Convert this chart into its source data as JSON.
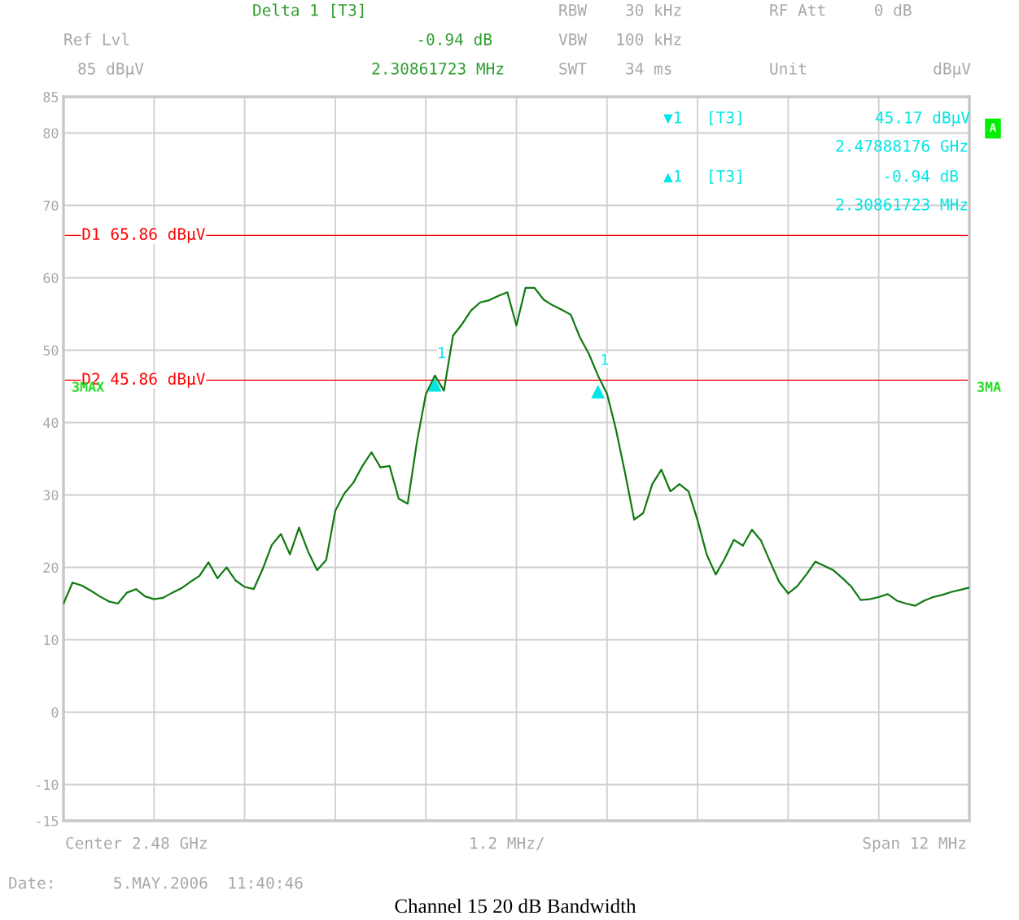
{
  "chart_data": {
    "type": "line",
    "title": "Channel 15 20 dB Bandwidth",
    "categories": [
      null,
      null,
      null,
      null,
      null,
      null,
      null,
      null,
      null,
      null,
      null,
      null,
      null,
      null,
      null,
      null,
      null,
      null,
      null,
      null,
      null,
      null,
      null,
      null,
      null,
      null,
      null,
      null,
      null,
      null,
      null,
      null,
      null,
      null,
      null,
      null,
      null,
      null,
      null,
      null,
      null,
      null,
      null,
      null,
      null,
      null,
      null,
      null,
      null,
      null,
      null,
      null,
      null,
      null,
      null,
      null,
      null,
      null,
      null,
      null,
      null,
      null,
      null,
      null,
      null,
      null,
      null,
      null,
      null,
      null,
      null,
      null,
      null,
      null,
      null,
      null,
      null,
      null,
      null,
      null,
      null,
      null,
      null,
      null,
      null,
      null,
      null,
      null,
      null,
      null,
      null,
      null,
      null,
      null,
      null,
      null,
      null,
      null,
      null,
      null,
      null
    ],
    "series": [
      {
        "color": "#117a11",
        "values": [
          15.0,
          17.9,
          17.5,
          16.8,
          16.0,
          15.3,
          15.0,
          16.5,
          17.0,
          16.0,
          15.6,
          15.8,
          16.5,
          17.1,
          18.0,
          18.8,
          20.7,
          18.5,
          20.0,
          18.2,
          17.3,
          17.0,
          19.8,
          23.1,
          24.6,
          21.8,
          25.5,
          22.2,
          19.6,
          21.0,
          27.8,
          30.2,
          31.7,
          34.0,
          35.9,
          33.8,
          34.0,
          29.5,
          28.8,
          37.2,
          43.9,
          46.5,
          44.4,
          52.0,
          53.6,
          55.5,
          56.6,
          56.9,
          57.5,
          58.0,
          53.4,
          58.6,
          58.6,
          57.0,
          56.2,
          55.6,
          54.9,
          51.8,
          49.5,
          46.5,
          44.0,
          39.0,
          33.0,
          26.6,
          27.5,
          31.5,
          33.5,
          30.5,
          31.5,
          30.5,
          26.5,
          21.8,
          19.0,
          21.2,
          23.8,
          23.0,
          25.2,
          23.7,
          20.8,
          18.0,
          16.4,
          17.4,
          19.0,
          20.8,
          20.2,
          19.6,
          18.5,
          17.3,
          15.5,
          15.6,
          15.9,
          16.3,
          15.4,
          15.0,
          14.7,
          15.4,
          15.9,
          16.2,
          16.6,
          16.9,
          17.2
        ]
      },
      {
        "name": "1",
        "type": "scatter",
        "marker": "triangle",
        "color": "#00e5e5",
        "values": [
          null,
          null,
          null,
          null,
          null,
          null,
          null,
          null,
          null,
          null,
          null,
          null,
          null,
          null,
          null,
          null,
          null,
          null,
          null,
          null,
          null,
          null,
          null,
          null,
          null,
          null,
          null,
          null,
          null,
          null,
          null,
          null,
          null,
          null,
          null,
          null,
          null,
          null,
          null,
          null,
          null,
          45.17,
          null,
          null,
          null,
          null,
          null,
          null,
          null,
          null,
          null,
          null,
          null,
          null,
          null,
          null,
          null,
          null,
          null,
          null,
          null,
          null,
          null,
          null,
          null,
          null,
          null,
          null,
          null,
          null,
          null,
          null,
          null,
          null,
          null,
          null,
          null,
          null,
          null,
          null,
          null,
          null,
          null,
          null,
          null,
          null,
          null,
          null,
          null,
          null,
          null,
          null,
          null,
          null,
          null,
          null,
          null,
          null,
          null,
          null,
          null
        ]
      },
      {
        "name": "1",
        "type": "scatter",
        "marker": "triangle",
        "color": "#00e5e5",
        "values": [
          null,
          null,
          null,
          null,
          null,
          null,
          null,
          null,
          null,
          null,
          null,
          null,
          null,
          null,
          null,
          null,
          null,
          null,
          null,
          null,
          null,
          null,
          null,
          null,
          null,
          null,
          null,
          null,
          null,
          null,
          null,
          null,
          null,
          null,
          null,
          null,
          null,
          null,
          null,
          null,
          null,
          null,
          null,
          null,
          null,
          null,
          null,
          null,
          null,
          null,
          null,
          null,
          null,
          null,
          null,
          null,
          null,
          null,
          null,
          44.23,
          null,
          null,
          null,
          null,
          null,
          null,
          null,
          null,
          null,
          null,
          null,
          null,
          null,
          null,
          null,
          null,
          null,
          null,
          null,
          null,
          null,
          null,
          null,
          null,
          null,
          null,
          null,
          null,
          null,
          null,
          null,
          null,
          null,
          null,
          null,
          null,
          null,
          null,
          null,
          null,
          null
        ]
      }
    ],
    "ylim": [
      -15,
      85
    ],
    "yticks": [
      -15,
      -10,
      0,
      10,
      20,
      30,
      40,
      50,
      60,
      70,
      80,
      85
    ],
    "grid": true,
    "ref_lines": [
      {
        "axis": "y",
        "value": 65.86,
        "label": "D1 65.86 dBµV",
        "color": "#ff0000"
      },
      {
        "axis": "y",
        "value": 45.86,
        "label": "D2 45.86 dBµV",
        "color": "#ff0000"
      }
    ],
    "annotations": [
      "Delta 1 [T3]",
      "Ref Lvl",
      "-0.94 dB",
      "85 dBµV",
      "2.30861723 MHz",
      "RBW    30 kHz",
      "VBW   100 kHz",
      "SWT    34 ms",
      "RF Att     0 dB",
      "Unit",
      "dBµV",
      "▼1",
      "[T3]",
      "45.17 dBµV",
      "2.47888176 GHz",
      "▲1",
      "[T3]",
      "-0.94 dB",
      "2.30861723 MHz",
      "A",
      "3MAX",
      "3MA",
      "Center 2.48 GHz",
      "1.2 MHz/",
      "Span 12 MHz",
      "Date:      5.MAY.2006  11:40:46"
    ]
  }
}
